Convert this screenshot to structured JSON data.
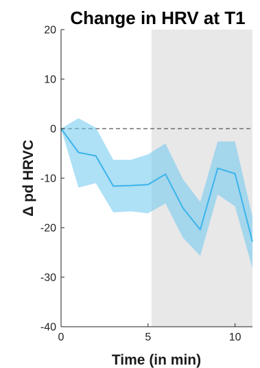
{
  "chart_data": {
    "type": "line",
    "title": "Change in HRV at T1",
    "xlabel": "Time (in min)",
    "ylabel": "Δ pd HRVC",
    "xlim": [
      0,
      11
    ],
    "ylim": [
      -40,
      20
    ],
    "xticks": [
      0,
      5,
      10
    ],
    "yticks": [
      20,
      10,
      0,
      -10,
      -20,
      -30,
      -40
    ],
    "shaded_region": {
      "from": 5.2,
      "to": 11,
      "color": "#e8e8e8"
    },
    "reference_line": {
      "y": 0,
      "style": "dashed",
      "color": "#555555"
    },
    "series": [
      {
        "x": [
          0,
          1,
          2,
          3,
          4,
          5,
          6,
          7,
          8,
          9,
          10,
          11
        ],
        "y": [
          0,
          -4.8,
          -5.5,
          -11.6,
          -11.5,
          -11.3,
          -9.2,
          -16.0,
          -20.4,
          -8.0,
          -9.1,
          -22.8
        ],
        "upper": [
          0,
          2.1,
          0.2,
          -6.3,
          -6.3,
          -5.2,
          -3.0,
          -10.2,
          -14.8,
          -2.6,
          -2.6,
          -17.8
        ],
        "lower": [
          0,
          -11.9,
          -11.0,
          -16.9,
          -16.7,
          -17.1,
          -15.1,
          -22.0,
          -25.7,
          -13.3,
          -15.7,
          -28.2
        ],
        "color": "#3bb4ea",
        "band_color": "#6cc7ee"
      }
    ]
  }
}
